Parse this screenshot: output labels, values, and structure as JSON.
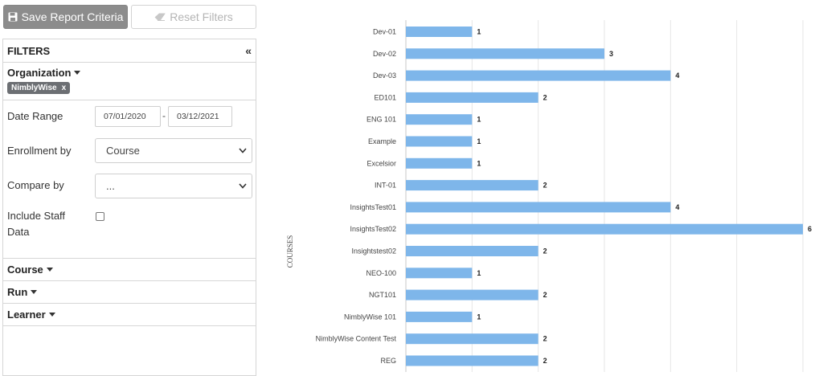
{
  "toolbar": {
    "save_label": "Save Report Criteria",
    "reset_label": "Reset Filters"
  },
  "filters": {
    "title": "FILTERS",
    "collapse_symbol": "«",
    "organization": {
      "label": "Organization",
      "tag": "NimblyWise",
      "tag_remove": "x"
    },
    "date_range": {
      "label": "Date Range",
      "from": "07/01/2020",
      "separator": "-",
      "to": "03/12/2021"
    },
    "enrollment_by": {
      "label": "Enrollment by",
      "value": "Course"
    },
    "compare_by": {
      "label": "Compare by",
      "value": "..."
    },
    "include_staff": {
      "label_line1": "Include Staff",
      "label_line2": "Data",
      "checked": false
    },
    "sections": [
      "Course",
      "Run",
      "Learner"
    ]
  },
  "chart_data": {
    "type": "bar",
    "orientation": "horizontal",
    "ylabel": "COURSES",
    "bar_color": "#7eb6ea",
    "xlim": [
      0,
      6
    ],
    "grid": true,
    "categories": [
      "Dev-01",
      "Dev-02",
      "Dev-03",
      "ED101",
      "ENG 101",
      "Example",
      "Excelsior",
      "INT-01",
      "InsightsTest01",
      "InsightsTest02",
      "Insightstest02",
      "NEO-100",
      "NGT101",
      "NimblyWise 101",
      "NimblyWise Content Test",
      "REG"
    ],
    "values": [
      1,
      3,
      4,
      2,
      1,
      1,
      1,
      2,
      4,
      6,
      2,
      1,
      2,
      1,
      2,
      2
    ]
  }
}
